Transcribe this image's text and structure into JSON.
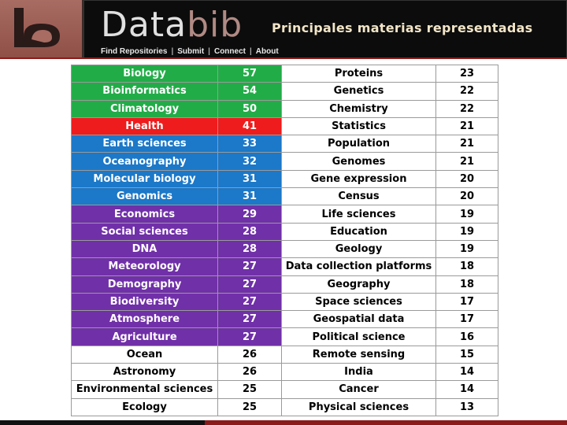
{
  "header": {
    "brand_part1": "Data",
    "brand_part2": "bib",
    "title": "Principales materias representadas",
    "nav": {
      "find_repositories": "Find Repositories",
      "submit": "Submit",
      "connect": "Connect",
      "about": "About",
      "separator": "|"
    }
  },
  "colors": {
    "green": "#22ac48",
    "red": "#ee1c1c",
    "blue": "#1c78c8",
    "purple": "#7030a8",
    "white": "#ffffff"
  },
  "table": {
    "rows": [
      {
        "left_subject": "Biology",
        "left_count": "57",
        "color": "green",
        "right_subject": "Proteins",
        "right_count": "23"
      },
      {
        "left_subject": "Bioinformatics",
        "left_count": "54",
        "color": "green",
        "right_subject": "Genetics",
        "right_count": "22"
      },
      {
        "left_subject": "Climatology",
        "left_count": "50",
        "color": "green",
        "right_subject": "Chemistry",
        "right_count": "22"
      },
      {
        "left_subject": "Health",
        "left_count": "41",
        "color": "red",
        "right_subject": "Statistics",
        "right_count": "21"
      },
      {
        "left_subject": "Earth sciences",
        "left_count": "33",
        "color": "blue",
        "right_subject": "Population",
        "right_count": "21"
      },
      {
        "left_subject": "Oceanography",
        "left_count": "32",
        "color": "blue",
        "right_subject": "Genomes",
        "right_count": "21"
      },
      {
        "left_subject": "Molecular biology",
        "left_count": "31",
        "color": "blue",
        "right_subject": "Gene expression",
        "right_count": "20"
      },
      {
        "left_subject": "Genomics",
        "left_count": "31",
        "color": "blue",
        "right_subject": "Census",
        "right_count": "20"
      },
      {
        "left_subject": "Economics",
        "left_count": "29",
        "color": "purple",
        "right_subject": "Life sciences",
        "right_count": "19"
      },
      {
        "left_subject": "Social sciences",
        "left_count": "28",
        "color": "purple",
        "right_subject": "Education",
        "right_count": "19"
      },
      {
        "left_subject": "DNA",
        "left_count": "28",
        "color": "purple",
        "right_subject": "Geology",
        "right_count": "19"
      },
      {
        "left_subject": "Meteorology",
        "left_count": "27",
        "color": "purple",
        "right_subject": "Data collection platforms",
        "right_count": "18"
      },
      {
        "left_subject": "Demography",
        "left_count": "27",
        "color": "purple",
        "right_subject": "Geography",
        "right_count": "18"
      },
      {
        "left_subject": "Biodiversity",
        "left_count": "27",
        "color": "purple",
        "right_subject": "Space sciences",
        "right_count": "17"
      },
      {
        "left_subject": "Atmosphere",
        "left_count": "27",
        "color": "purple",
        "right_subject": "Geospatial data",
        "right_count": "17"
      },
      {
        "left_subject": "Agriculture",
        "left_count": "27",
        "color": "purple",
        "right_subject": "Political science",
        "right_count": "16"
      },
      {
        "left_subject": "Ocean",
        "left_count": "26",
        "color": "white",
        "right_subject": "Remote sensing",
        "right_count": "15"
      },
      {
        "left_subject": "Astronomy",
        "left_count": "26",
        "color": "white",
        "right_subject": "India",
        "right_count": "14"
      },
      {
        "left_subject": "Environmental sciences",
        "left_count": "25",
        "color": "white",
        "right_subject": "Cancer",
        "right_count": "14"
      },
      {
        "left_subject": "Ecology",
        "left_count": "25",
        "color": "white",
        "right_subject": "Physical sciences",
        "right_count": "13"
      }
    ]
  }
}
